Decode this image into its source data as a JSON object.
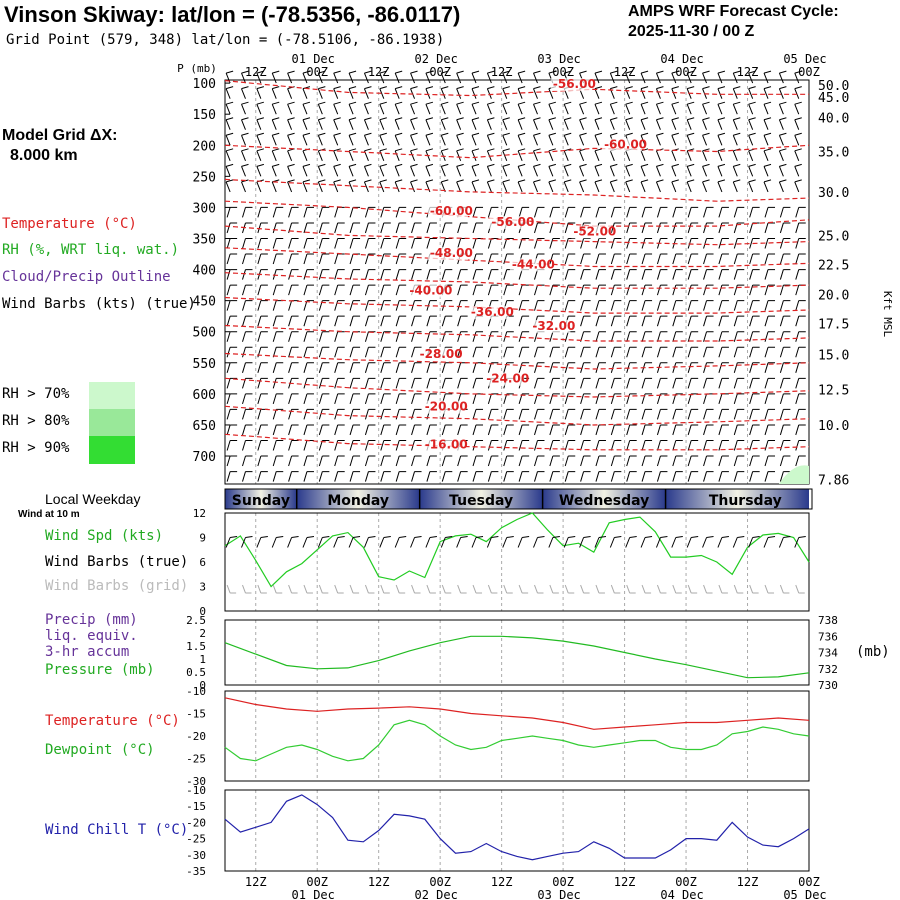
{
  "header": {
    "title": "Vinson Skiway:  lat/lon = (-78.5356, -86.0117)",
    "grid_point": "Grid Point (579, 348) lat/lon = (-78.5106, -86.1938)",
    "cycle_line1": "AMPS WRF Forecast Cycle:",
    "cycle_line2": "2025-11-30 / 00  Z"
  },
  "left_panel": {
    "grid_dx_label": "Model Grid ΔX:",
    "grid_dx_value": "8.000 km",
    "legend_temperature": "Temperature (°C)",
    "legend_rh": "RH (%, WRT liq. wat.)",
    "legend_cloud": "Cloud/Precip Outline",
    "legend_wind": "Wind Barbs (kts) (true)",
    "rh_thresholds": [
      {
        "label": "RH > 70%",
        "color": "#ccf8cc"
      },
      {
        "label": "RH > 80%",
        "color": "#99e899"
      },
      {
        "label": "RH > 90%",
        "color": "#33dd33"
      }
    ]
  },
  "time_axis": {
    "tick_labels": [
      "12Z",
      "00Z",
      "12Z",
      "00Z",
      "12Z",
      "00Z",
      "12Z",
      "00Z",
      "12Z",
      "00Z"
    ],
    "date_labels": [
      "01 Dec",
      "02 Dec",
      "03 Dec",
      "04 Dec",
      "05 Dec"
    ],
    "hours_start": 6,
    "hours_end": 120,
    "tick_hours": [
      12,
      24,
      36,
      48,
      60,
      72,
      84,
      96,
      108,
      120
    ],
    "date_hours": [
      24,
      48,
      72,
      96,
      120
    ]
  },
  "colors": {
    "temperature": "#dd2222",
    "rh": "#22cc22",
    "cloud": "#663399",
    "wind_true": "#000000",
    "wind_grid": "#aaaaaa",
    "pressure": "#22bb22",
    "precip": "#663399",
    "dewpoint": "#33cc33",
    "windchill": "#2222aa",
    "grid": "#aaaaaa",
    "day_band_dark": "#2a3a8c",
    "day_band_light": "#f2f2e4"
  },
  "chart_data": [
    {
      "type": "contour",
      "name": "upper-air cross section",
      "ylabel": "P (mb)",
      "y_ticks_mb": [
        100,
        150,
        200,
        250,
        300,
        350,
        400,
        450,
        500,
        550,
        600,
        650,
        700
      ],
      "ylim_mb": [
        95,
        745
      ],
      "right_axis_label": "Kft MSL",
      "right_ticks": [
        {
          "label": "50.0",
          "mb": 103
        },
        {
          "label": "45.0",
          "mb": 122
        },
        {
          "label": "40.0",
          "mb": 155
        },
        {
          "label": "35.0",
          "mb": 210
        },
        {
          "label": "30.0",
          "mb": 275
        },
        {
          "label": "25.0",
          "mb": 345
        },
        {
          "label": "22.5",
          "mb": 392
        },
        {
          "label": "20.0",
          "mb": 440
        },
        {
          "label": "17.5",
          "mb": 487
        },
        {
          "label": "15.0",
          "mb": 537
        },
        {
          "label": "12.5",
          "mb": 593
        },
        {
          "label": "10.0",
          "mb": 650
        },
        {
          "label": "7.86",
          "mb": 738
        }
      ],
      "temperature_labels": [
        {
          "text": "-56.00",
          "hour": 70,
          "mb": 108
        },
        {
          "text": "-60.00",
          "hour": 80,
          "mb": 205
        },
        {
          "text": "-60.00",
          "hour": 46,
          "mb": 312
        },
        {
          "text": "-56.00",
          "hour": 58,
          "mb": 330
        },
        {
          "text": "-52.00",
          "hour": 74,
          "mb": 345
        },
        {
          "text": "-48.00",
          "hour": 46,
          "mb": 380
        },
        {
          "text": "-44.00",
          "hour": 62,
          "mb": 398
        },
        {
          "text": "-40.00",
          "hour": 42,
          "mb": 440
        },
        {
          "text": "-36.00",
          "hour": 54,
          "mb": 475
        },
        {
          "text": "-32.00",
          "hour": 66,
          "mb": 497
        },
        {
          "text": "-28.00",
          "hour": 44,
          "mb": 542
        },
        {
          "text": "-24.00",
          "hour": 57,
          "mb": 582
        },
        {
          "text": "-20.00",
          "hour": 45,
          "mb": 627
        },
        {
          "text": "-16.00",
          "hour": 45,
          "mb": 688
        }
      ],
      "isotherm_mb_at_hours": {
        "hours": [
          6,
          30,
          54,
          78,
          102,
          120
        ],
        "lines": [
          [
            96,
            115,
            120,
            110,
            118,
            118
          ],
          [
            200,
            210,
            220,
            205,
            210,
            200
          ],
          [
            255,
            265,
            275,
            280,
            290,
            285
          ],
          [
            290,
            300,
            315,
            330,
            330,
            320
          ],
          [
            330,
            345,
            350,
            355,
            360,
            355
          ],
          [
            365,
            375,
            385,
            395,
            395,
            390
          ],
          [
            405,
            415,
            420,
            430,
            430,
            425
          ],
          [
            445,
            455,
            460,
            470,
            470,
            465
          ],
          [
            490,
            500,
            505,
            515,
            515,
            510
          ],
          [
            535,
            545,
            550,
            560,
            555,
            550
          ],
          [
            575,
            590,
            600,
            605,
            600,
            595
          ],
          [
            620,
            635,
            640,
            650,
            645,
            640
          ],
          [
            665,
            680,
            685,
            690,
            690,
            685
          ]
        ]
      }
    },
    {
      "type": "line",
      "name": "10 m wind",
      "title": "Wind at 10 m",
      "labels": [
        "Wind Spd (kts)",
        "Wind Barbs (true)",
        "Wind Barbs (grid)"
      ],
      "ylim": [
        0,
        12
      ],
      "y_ticks": [
        0,
        3,
        6,
        9,
        12
      ],
      "series": [
        {
          "name": "Wind Spd (kts)",
          "x": [
            6,
            9,
            12,
            15,
            18,
            21,
            24,
            27,
            30,
            33,
            36,
            39,
            42,
            45,
            48,
            51,
            54,
            57,
            60,
            63,
            66,
            69,
            72,
            75,
            78,
            81,
            84,
            87,
            90,
            93,
            96,
            99,
            102,
            105,
            108,
            111,
            114,
            117,
            120
          ],
          "values": [
            8.0,
            9.2,
            6.2,
            3.0,
            4.8,
            5.8,
            7.5,
            9.2,
            9.6,
            7.8,
            4.2,
            3.8,
            4.9,
            4.1,
            8.5,
            9.2,
            9.4,
            8.5,
            10.2,
            11.2,
            12.0,
            9.9,
            8.0,
            8.3,
            7.2,
            10.8,
            11.2,
            11.5,
            9.7,
            6.6,
            6.6,
            6.8,
            6.0,
            4.5,
            7.8,
            9.3,
            9.5,
            9.0,
            6.0
          ]
        }
      ]
    },
    {
      "type": "line",
      "name": "precip and pressure",
      "labels": [
        "Precip (mm)",
        "liq. equiv.",
        "3-hr accum",
        "Pressure (mb)"
      ],
      "ylim_precip": [
        0,
        2.5
      ],
      "y_ticks_precip": [
        0,
        0.5,
        1,
        1.5,
        2,
        2.5
      ],
      "ylim_pressure": [
        730,
        738
      ],
      "y_ticks_pressure": [
        730,
        732,
        734,
        736,
        738
      ],
      "right_unit": "(mb)",
      "series": [
        {
          "name": "Pressure (mb)",
          "x": [
            6,
            12,
            18,
            24,
            30,
            36,
            42,
            48,
            54,
            60,
            66,
            72,
            78,
            84,
            90,
            96,
            102,
            108,
            114,
            120
          ],
          "values": [
            735.2,
            733.8,
            732.4,
            732.0,
            732.1,
            733.0,
            734.2,
            735.2,
            736.0,
            736.0,
            735.8,
            735.4,
            734.8,
            734.0,
            733.2,
            732.5,
            731.7,
            730.9,
            731.0,
            731.5
          ]
        }
      ]
    },
    {
      "type": "line",
      "name": "temperature and dewpoint",
      "labels": [
        "Temperature (°C)",
        "Dewpoint (°C)"
      ],
      "ylim": [
        -30,
        -10
      ],
      "y_ticks": [
        -10,
        -15,
        -20,
        -25,
        -30
      ],
      "series": [
        {
          "name": "Temperature (°C)",
          "x": [
            6,
            12,
            18,
            24,
            30,
            36,
            42,
            48,
            54,
            60,
            66,
            72,
            78,
            84,
            90,
            96,
            102,
            108,
            114,
            120
          ],
          "values": [
            -11.5,
            -13.0,
            -14.0,
            -14.5,
            -14.0,
            -13.8,
            -13.5,
            -14.0,
            -15.0,
            -15.5,
            -16.0,
            -17.0,
            -18.5,
            -18.0,
            -17.5,
            -17.0,
            -17.0,
            -16.5,
            -16.0,
            -16.5
          ]
        },
        {
          "name": "Dewpoint (°C)",
          "x": [
            6,
            9,
            12,
            15,
            18,
            21,
            24,
            27,
            30,
            33,
            36,
            39,
            42,
            45,
            48,
            51,
            54,
            57,
            60,
            63,
            66,
            69,
            72,
            75,
            78,
            81,
            84,
            87,
            90,
            93,
            96,
            99,
            102,
            105,
            108,
            111,
            114,
            117,
            120
          ],
          "values": [
            -22.5,
            -25.0,
            -25.5,
            -24.0,
            -22.5,
            -22.0,
            -23.0,
            -24.5,
            -25.5,
            -25.0,
            -22.0,
            -17.5,
            -16.5,
            -17.5,
            -20.0,
            -22.0,
            -23.0,
            -22.5,
            -21.0,
            -20.5,
            -20.0,
            -20.5,
            -21.0,
            -22.0,
            -22.5,
            -22.0,
            -21.5,
            -21.0,
            -21.0,
            -22.5,
            -23.0,
            -23.0,
            -22.0,
            -19.5,
            -19.0,
            -18.0,
            -18.5,
            -19.5,
            -20.0
          ]
        }
      ]
    },
    {
      "type": "line",
      "name": "wind chill",
      "labels": [
        "Wind Chill T (°C)"
      ],
      "ylim": [
        -35,
        -10
      ],
      "y_ticks": [
        -10,
        -15,
        -20,
        -25,
        -30,
        -35
      ],
      "series": [
        {
          "name": "Wind Chill T (°C)",
          "x": [
            6,
            9,
            12,
            15,
            18,
            21,
            24,
            27,
            30,
            33,
            36,
            39,
            42,
            45,
            48,
            51,
            54,
            57,
            60,
            63,
            66,
            69,
            72,
            75,
            78,
            81,
            84,
            87,
            90,
            93,
            96,
            99,
            102,
            105,
            108,
            111,
            114,
            117,
            120
          ],
          "values": [
            -19.0,
            -23.0,
            -21.5,
            -20.0,
            -13.5,
            -11.5,
            -14.5,
            -18.5,
            -25.5,
            -26.0,
            -22.5,
            -17.5,
            -18.0,
            -19.0,
            -25.0,
            -29.5,
            -29.0,
            -26.5,
            -29.0,
            -30.5,
            -31.5,
            -30.5,
            -29.5,
            -29.0,
            -26.0,
            -28.0,
            -31.0,
            -31.0,
            -31.0,
            -28.5,
            -25.0,
            -25.0,
            -25.5,
            -20.0,
            -24.5,
            -27.0,
            -27.5,
            -25.0,
            -22.0
          ]
        }
      ]
    }
  ],
  "weekday_band": {
    "title": "Local Weekday",
    "days": [
      "Sunday",
      "Monday",
      "Tuesday",
      "Wednesday",
      "Thursday"
    ]
  }
}
